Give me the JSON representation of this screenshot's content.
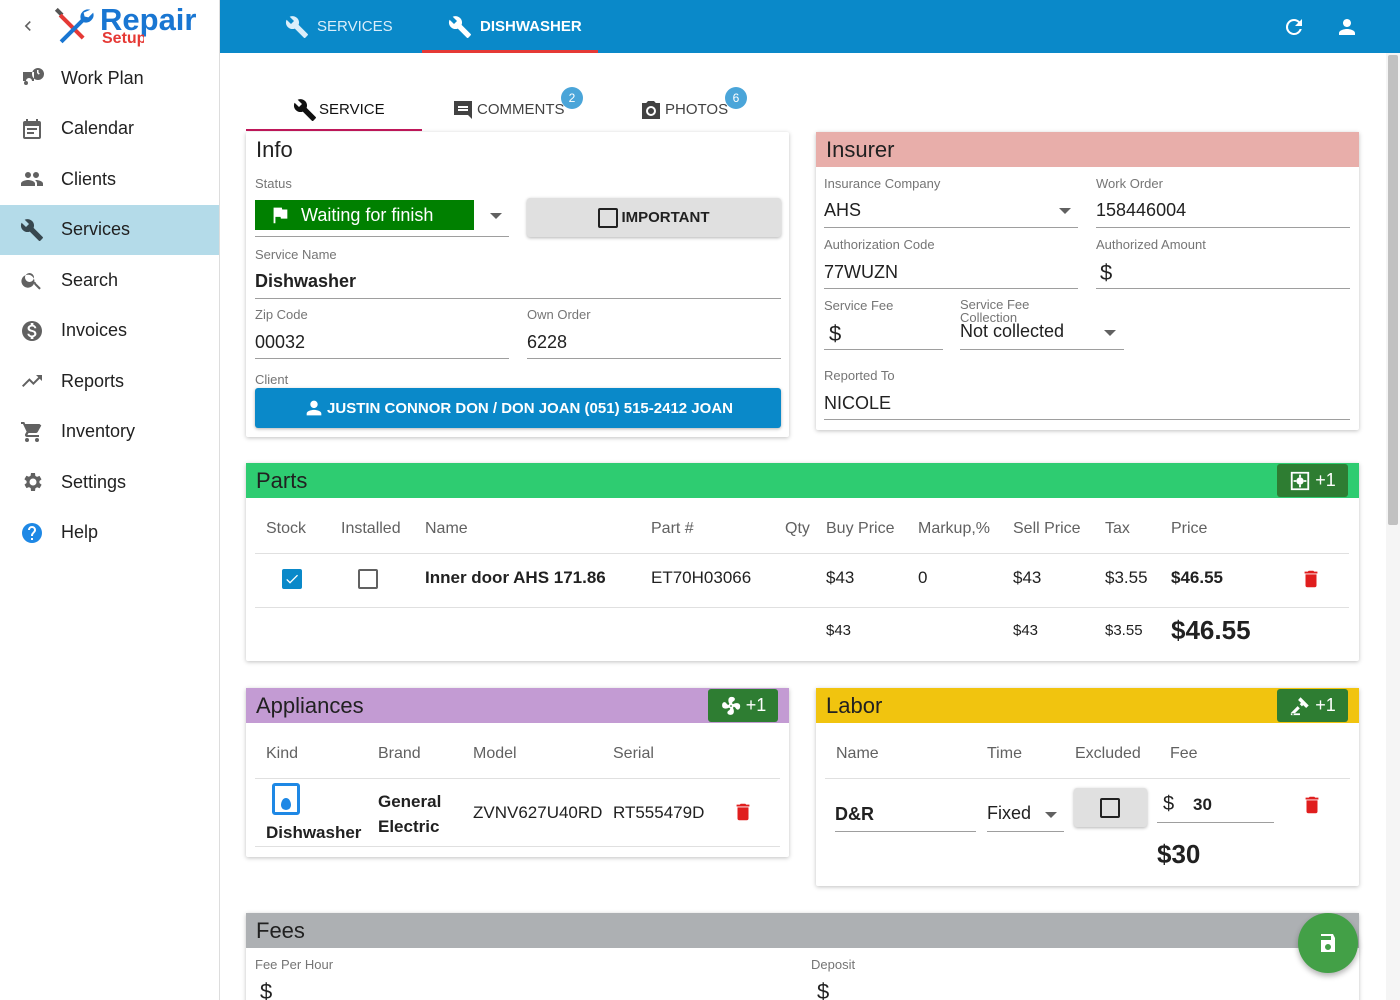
{
  "logo": {
    "text_a": "Repair",
    "text_b": "Setup"
  },
  "sidebar": {
    "items": [
      {
        "label": "Work Plan",
        "icon": "truck-clock-icon"
      },
      {
        "label": "Calendar",
        "icon": "calendar-icon"
      },
      {
        "label": "Clients",
        "icon": "people-icon"
      },
      {
        "label": "Services",
        "icon": "wrench-icon",
        "active": true
      },
      {
        "label": "Search",
        "icon": "search-icon"
      },
      {
        "label": "Invoices",
        "icon": "dollar-circle-icon"
      },
      {
        "label": "Reports",
        "icon": "trending-icon"
      },
      {
        "label": "Inventory",
        "icon": "cart-icon"
      },
      {
        "label": "Settings",
        "icon": "gear-icon"
      },
      {
        "label": "Help",
        "icon": "help-icon"
      }
    ]
  },
  "header": {
    "tab_services": "SERVICES",
    "tab_dishwasher": "DISHWASHER"
  },
  "subtabs": {
    "service": "SERVICE",
    "comments": "COMMENTS",
    "comments_count": "2",
    "photos": "PHOTOS",
    "photos_count": "6"
  },
  "info": {
    "title": "Info",
    "status_label": "Status",
    "status_value": "Waiting for finish",
    "important_label": "IMPORTANT",
    "service_name_label": "Service Name",
    "service_name": "Dishwasher",
    "zip_label": "Zip Code",
    "zip": "00032",
    "own_order_label": "Own Order",
    "own_order": "6228",
    "client_label": "Client",
    "client_button": "JUSTIN CONNOR DON / DON JOAN (051) 515-2412 JOAN"
  },
  "insurer": {
    "title": "Insurer",
    "company_label": "Insurance Company",
    "company": "AHS",
    "work_order_label": "Work Order",
    "work_order": "158446004",
    "auth_code_label": "Authorization Code",
    "auth_code": "77WUZN",
    "auth_amount_label": "Authorized Amount",
    "currency": "$",
    "service_fee_label": "Service Fee",
    "fee_collection_label": "Service Fee Collection",
    "fee_collection": "Not collected",
    "reported_to_label": "Reported To",
    "reported_to": "NICOLE"
  },
  "parts": {
    "title": "Parts",
    "add_label": "+1",
    "columns": [
      "Stock",
      "Installed",
      "Name",
      "Part #",
      "Qty",
      "Buy Price",
      "Markup,%",
      "Sell Price",
      "Tax",
      "Price"
    ],
    "rows": [
      {
        "stock": true,
        "installed": false,
        "name": "Inner door AHS 171.86",
        "part_no": "ET70H03066",
        "qty": "",
        "buy": "$43",
        "markup": "0",
        "sell": "$43",
        "tax": "$3.55",
        "price": "$46.55"
      }
    ],
    "totals": {
      "buy": "$43",
      "sell": "$43",
      "tax": "$3.55",
      "price": "$46.55"
    }
  },
  "appliances": {
    "title": "Appliances",
    "add_label": "+1",
    "columns": [
      "Kind",
      "Brand",
      "Model",
      "Serial"
    ],
    "rows": [
      {
        "kind": "Dishwasher",
        "brand": "General Electric",
        "model": "ZVNV627U40RD",
        "serial": "RT555479D"
      }
    ]
  },
  "labor": {
    "title": "Labor",
    "add_label": "+1",
    "columns": [
      "Name",
      "Time",
      "Excluded",
      "Fee"
    ],
    "rows": [
      {
        "name": "D&R",
        "time": "Fixed",
        "excluded": false,
        "currency": "$",
        "fee": "30"
      }
    ],
    "total": "$30"
  },
  "fees": {
    "title": "Fees",
    "fee_per_hour_label": "Fee Per Hour",
    "deposit_label": "Deposit",
    "currency": "$"
  },
  "colors": {
    "primary": "#0a89c9",
    "info_border": "#c2185b",
    "insurer_header": "#e8aeaa",
    "parts_header": "#2ecc71",
    "appliances_header": "#c39bd3",
    "labor_header": "#f1c40f",
    "fees_header": "#adb0b3",
    "status": "#008000",
    "save": "#43a047",
    "delete": "#e01e1e"
  }
}
